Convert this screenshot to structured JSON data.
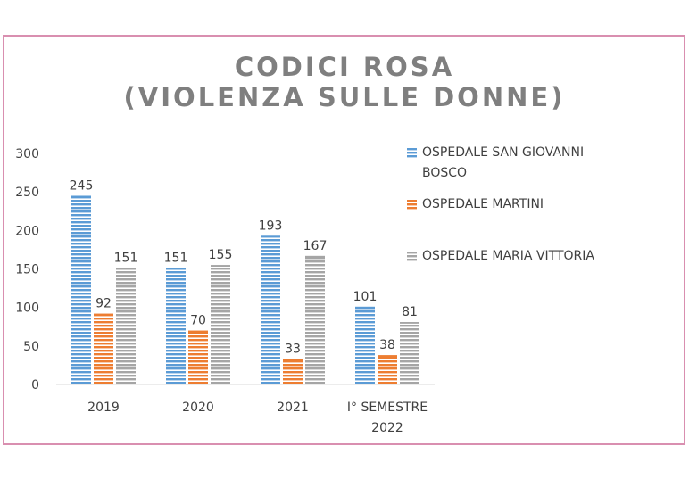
{
  "chart_data": {
    "type": "bar",
    "title_lines": [
      "CODICI ROSA",
      "(VIOLENZA SULLE DONNE)"
    ],
    "categories": [
      [
        "2019"
      ],
      [
        "2020"
      ],
      [
        "2021"
      ],
      [
        "I° SEMESTRE",
        "2022"
      ]
    ],
    "series": [
      {
        "name": "OSPEDALE SAN GIOVANNI BOSCO",
        "values": [
          245,
          151,
          193,
          101
        ],
        "color": "#5b9bd5"
      },
      {
        "name": "OSPEDALE MARTINI",
        "values": [
          92,
          70,
          33,
          38
        ],
        "color": "#ed7d31"
      },
      {
        "name": "OSPEDALE MARIA VITTORIA",
        "values": [
          151,
          155,
          167,
          81
        ],
        "color": "#a5a5a5"
      }
    ],
    "ylim": [
      0,
      300
    ],
    "yticks": [
      0,
      50,
      100,
      150,
      200,
      250,
      300
    ],
    "grid": false,
    "bar_pattern": "horizontal stripes",
    "legend_position": "right"
  }
}
